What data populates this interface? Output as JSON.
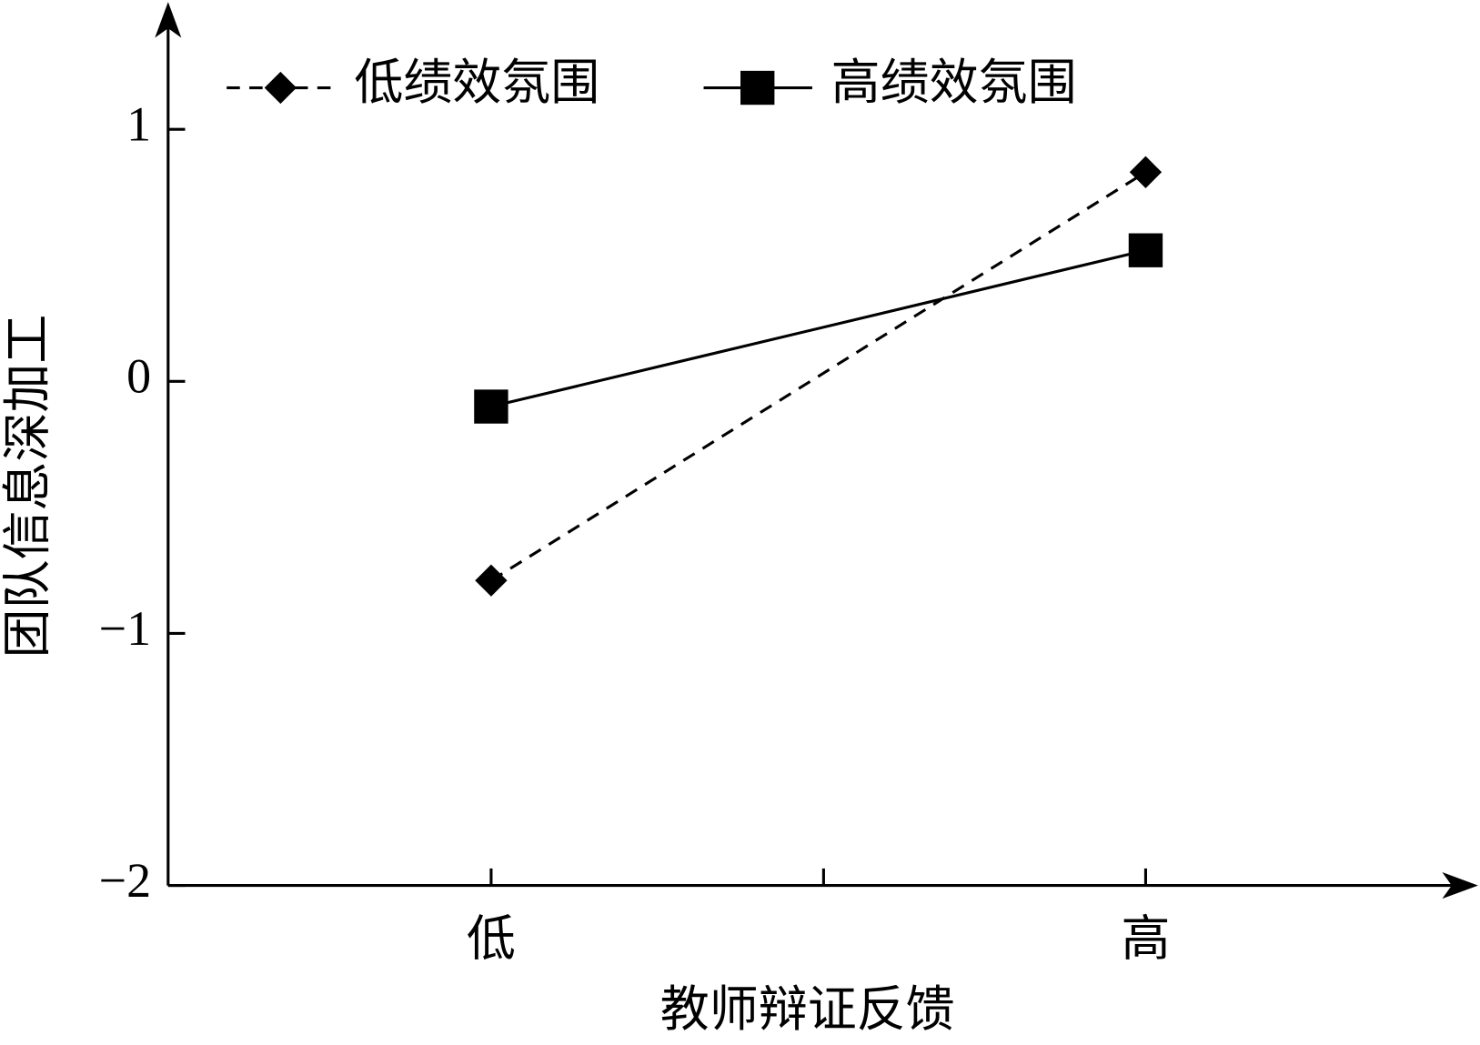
{
  "chart_data": {
    "type": "line",
    "x_label": "教师辩证反馈",
    "y_label": "团队信息深加工",
    "categories": [
      "低",
      "高"
    ],
    "series": [
      {
        "name": "低绩效氛围",
        "color": "#000000",
        "values": [
          -0.79,
          0.83
        ],
        "dash": true,
        "marker": "diamond"
      },
      {
        "name": "高绩效氛围",
        "color": "#000000",
        "values": [
          -0.1,
          0.52
        ],
        "dash": false,
        "marker": "square"
      }
    ],
    "ylim": [
      -2,
      1.5
    ],
    "yticks": [
      {
        "value": -2,
        "label": "−2"
      },
      {
        "value": -1,
        "label": "−1"
      },
      0,
      1
    ]
  }
}
